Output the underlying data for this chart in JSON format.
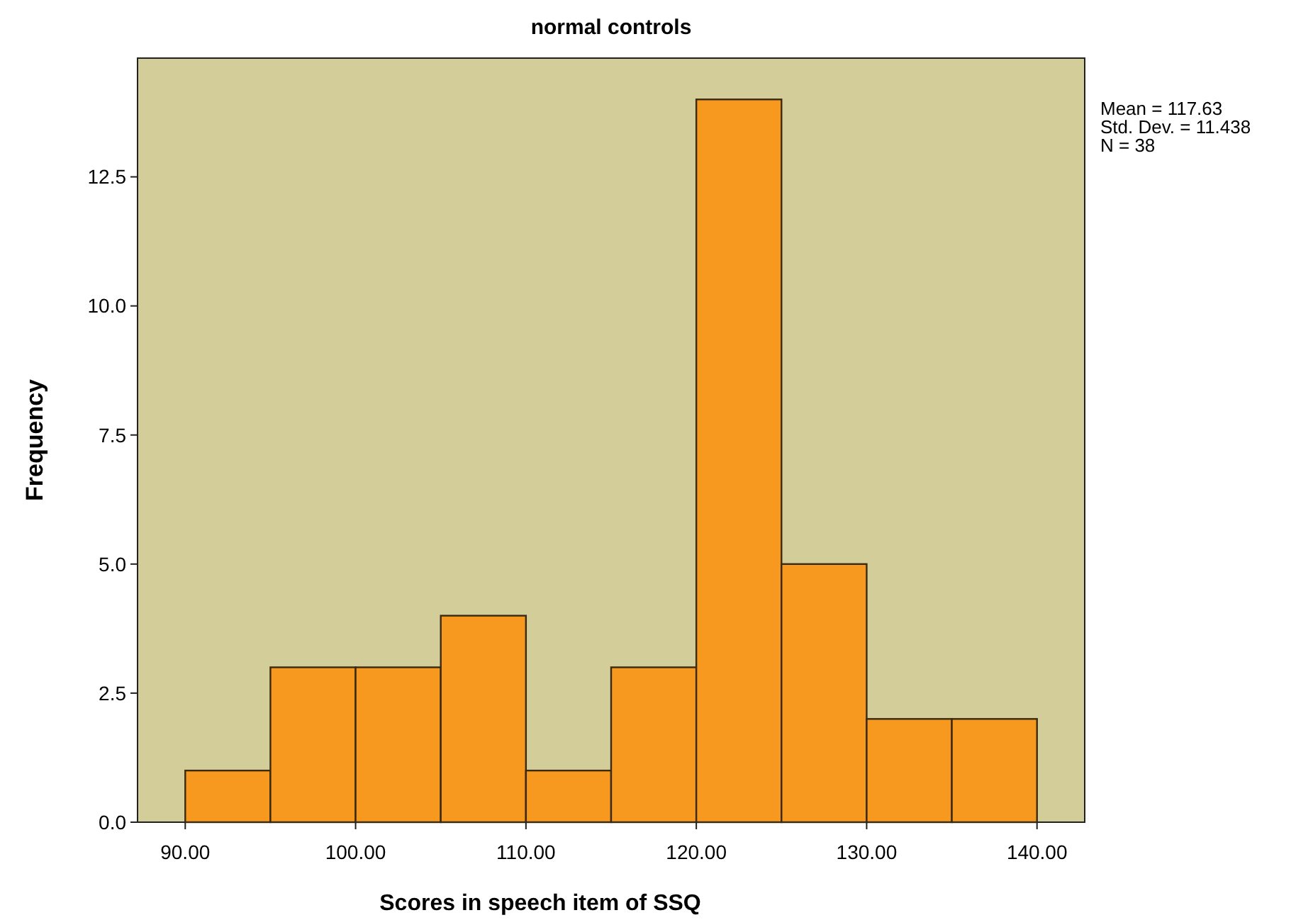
{
  "chart_data": {
    "type": "histogram",
    "title": "normal controls",
    "xlabel": "Scores in speech item of SSQ",
    "ylabel": "Frequency",
    "bins": [
      90,
      95,
      100,
      105,
      110,
      115,
      120,
      125,
      130,
      135,
      140
    ],
    "values": [
      1,
      3,
      3,
      4,
      1,
      3,
      14,
      5,
      2,
      2
    ],
    "color": "#f7991e",
    "xlim": [
      87.2,
      142.8
    ],
    "xticks": [
      {
        "value": 90,
        "label": "90.00"
      },
      {
        "value": 100,
        "label": "100.00"
      },
      {
        "value": 110,
        "label": "110.00"
      },
      {
        "value": 120,
        "label": "120.00"
      },
      {
        "value": 130,
        "label": "130.00"
      },
      {
        "value": 140,
        "label": "140.00"
      }
    ],
    "ylim": [
      0,
      14.8
    ],
    "yticks": [
      {
        "value": 0,
        "label": "0.0"
      },
      {
        "value": 2.5,
        "label": "2.5"
      },
      {
        "value": 5,
        "label": "5.0"
      },
      {
        "value": 7.5,
        "label": "7.5"
      },
      {
        "value": 10,
        "label": "10.0"
      },
      {
        "value": 12.5,
        "label": "12.5"
      }
    ],
    "grid": false,
    "annotations": [
      "Mean = 117.63",
      "Std. Dev. = 11.438",
      "N = 38"
    ]
  }
}
